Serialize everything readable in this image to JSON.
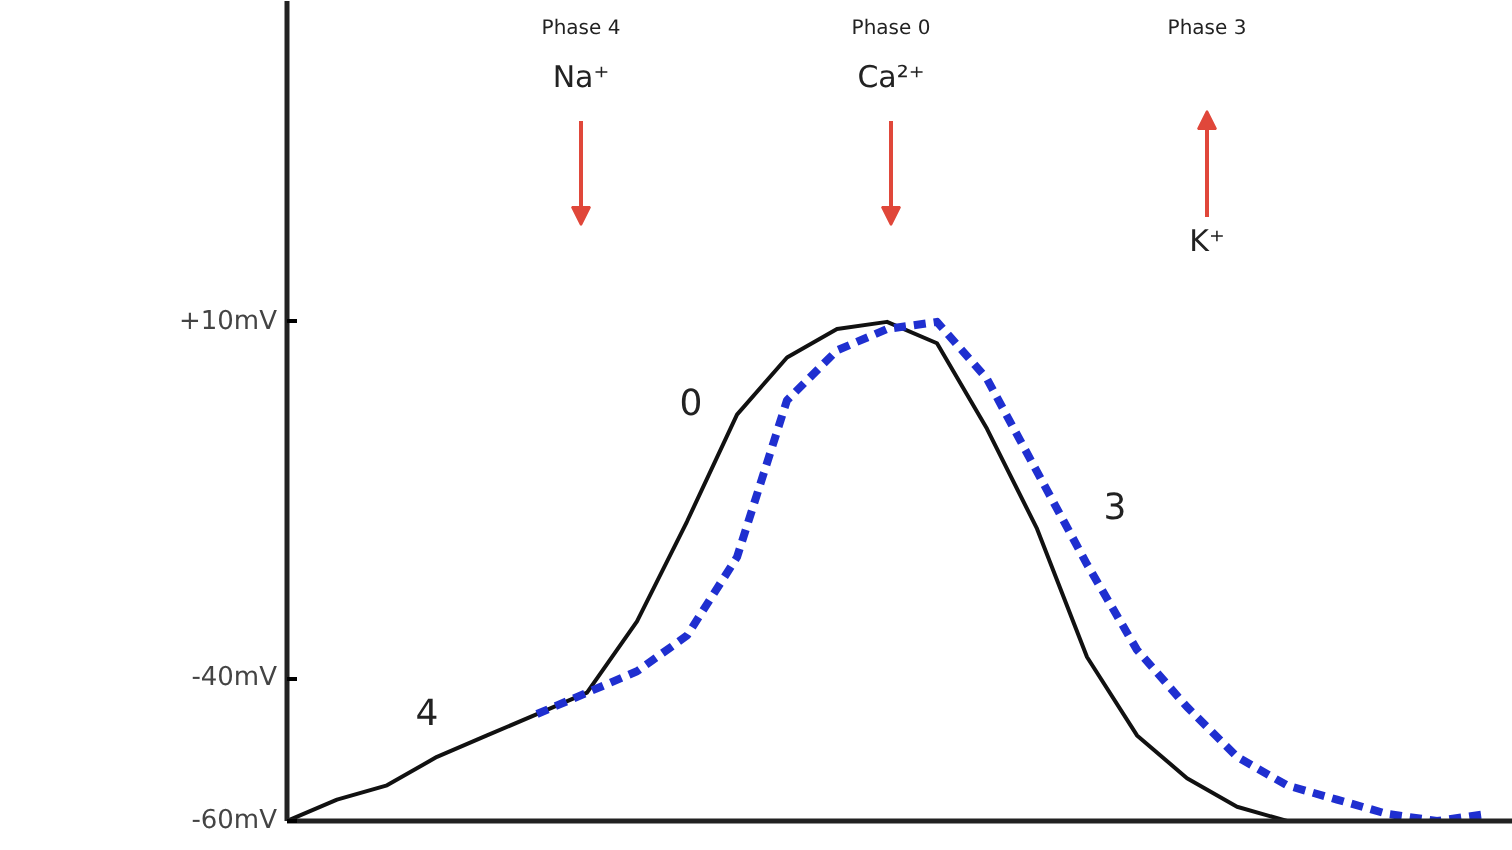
{
  "chart_data": {
    "type": "line",
    "categories": [
      null,
      null,
      null,
      null,
      null,
      null,
      null,
      null,
      null,
      null,
      null,
      null,
      null,
      null,
      null,
      null,
      null,
      null,
      null,
      null,
      null,
      null,
      null,
      null,
      null
    ],
    "series": [
      {
        "color": "#111111",
        "line_style": "solid",
        "values": [
          -60,
          -57,
          -55,
          -51,
          -48,
          -45,
          -42,
          -32,
          -18,
          -3,
          5,
          9,
          10,
          7,
          -5,
          -19,
          -37,
          -48,
          -54,
          -58,
          -60,
          -60,
          -60,
          -60,
          null
        ]
      },
      {
        "color": "#1f2fd0",
        "line_style": "dashed",
        "values": [
          null,
          null,
          null,
          null,
          null,
          -45,
          -42,
          -39,
          -34,
          -23,
          -1,
          6,
          9,
          10,
          2,
          -11,
          -24,
          -36,
          -44,
          -51,
          -55,
          -57,
          -59,
          -60,
          -59
        ]
      }
    ],
    "ylim": [
      -60,
      55
    ],
    "yticks": [
      {
        "value": 10,
        "label": "+10mV"
      },
      {
        "value": -40,
        "label": "-40mV"
      },
      {
        "value": -60,
        "label": "-60mV"
      }
    ],
    "tick_labels": "y",
    "grid": false,
    "annotations": [
      "Phase 4",
      "Na⁺",
      "Phase 0",
      "Ca²⁺",
      "Phase 3",
      "K⁺",
      "0",
      "3",
      "4"
    ]
  }
}
